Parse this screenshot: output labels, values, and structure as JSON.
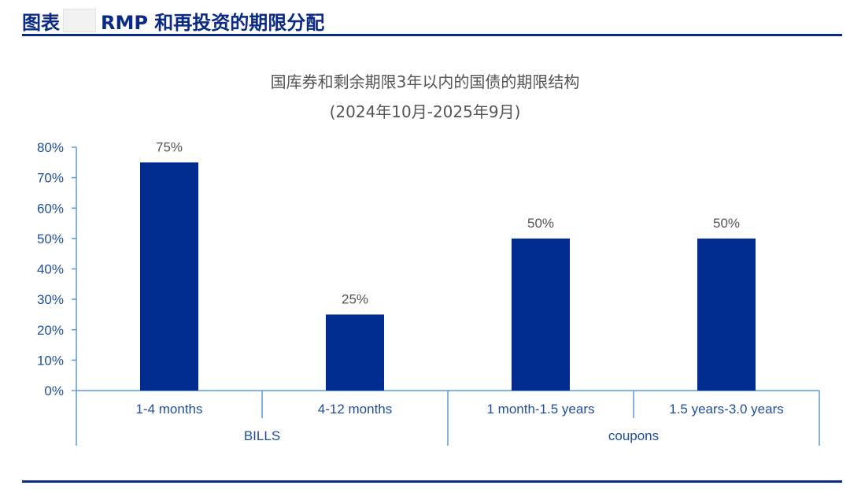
{
  "header": {
    "prefix": "图表",
    "title": "RMP 和再投资的期限分配"
  },
  "colors": {
    "brand": "#0b2a86",
    "bar": "#002b8f",
    "axis": "#5b9bd5",
    "tick_text": "#1f4e9c",
    "title_text": "#555555"
  },
  "chart_data": {
    "type": "bar",
    "title": "国库券和剩余期限3年以内的国债的期限结构",
    "subtitle": "(2024年10月-2025年9月)",
    "categories": [
      "1-4 months",
      "4-12 months",
      "1 month-1.5 years",
      "1.5 years-3.0 years"
    ],
    "groups": [
      {
        "label": "BILLS",
        "categories": [
          "1-4 months",
          "4-12 months"
        ]
      },
      {
        "label": "coupons",
        "categories": [
          "1 month-1.5 years",
          "1.5 years-3.0 years"
        ]
      }
    ],
    "values": [
      75,
      25,
      50,
      50
    ],
    "value_labels": [
      "75%",
      "25%",
      "50%",
      "50%"
    ],
    "ylim": [
      0,
      80
    ],
    "yticks": [
      0,
      10,
      20,
      30,
      40,
      50,
      60,
      70,
      80
    ],
    "ytick_labels": [
      "0%",
      "10%",
      "20%",
      "30%",
      "40%",
      "50%",
      "60%",
      "70%",
      "80%"
    ],
    "xlabel": "",
    "ylabel": "",
    "grid": false,
    "legend": "none"
  }
}
